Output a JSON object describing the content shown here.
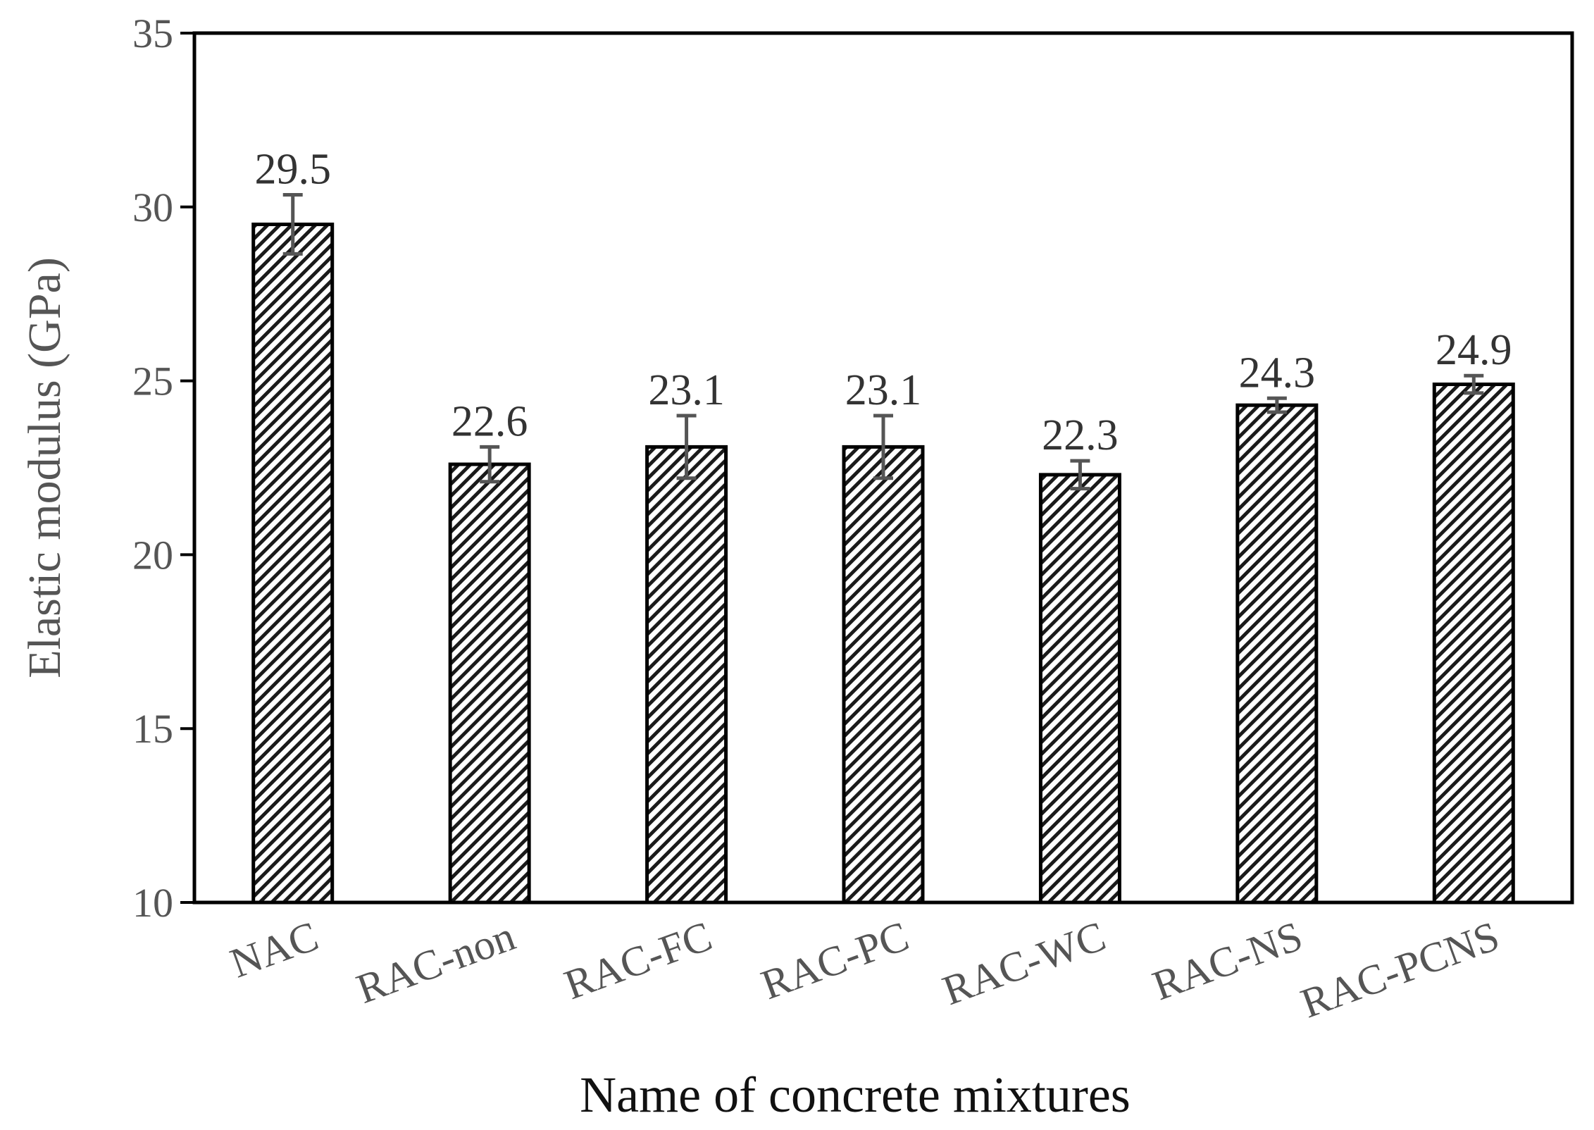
{
  "chart_data": {
    "type": "bar",
    "xlabel": "Name of concrete mixtures",
    "ylabel": "Elastic modulus (GPa)",
    "ylim": [
      10,
      35
    ],
    "yticks": [
      10,
      15,
      20,
      25,
      30,
      35
    ],
    "grid": false,
    "legend": "none",
    "bar_style": "diagonal hatch",
    "categories": [
      "NAC",
      "RAC-non",
      "RAC-FC",
      "RAC-PC",
      "RAC-WC",
      "RAC-NS",
      "RAC-PCNS"
    ],
    "values": [
      29.5,
      22.6,
      23.1,
      23.1,
      22.3,
      24.3,
      24.9
    ],
    "value_labels": [
      "29.5",
      "22.6",
      "23.1",
      "23.1",
      "22.3",
      "24.3",
      "24.9"
    ],
    "error": [
      0.85,
      0.5,
      0.9,
      0.9,
      0.4,
      0.2,
      0.25
    ],
    "colors": {
      "bar_fill": "#ffffff",
      "hatch": "#111111",
      "bar_edge": "#000000",
      "error_bar": "#555555",
      "axis": "#000000"
    }
  }
}
